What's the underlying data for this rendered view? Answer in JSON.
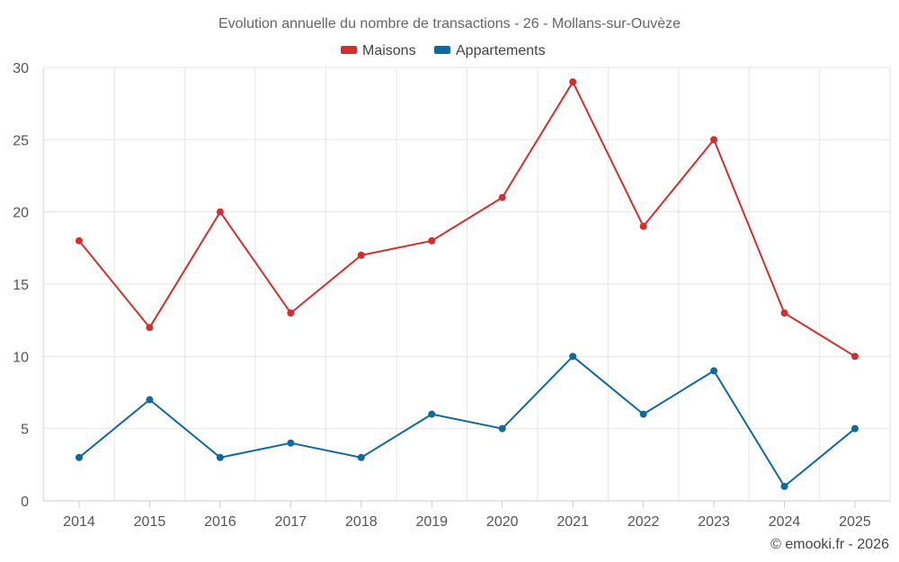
{
  "chart_data": {
    "type": "line",
    "title": "Evolution annuelle du nombre de transactions - 26 - Mollans-sur-Ouvèze",
    "categories": [
      "2014",
      "2015",
      "2016",
      "2017",
      "2018",
      "2019",
      "2020",
      "2021",
      "2022",
      "2023",
      "2024",
      "2025"
    ],
    "series": [
      {
        "name": "Maisons",
        "color": "#d32f2f",
        "values": [
          18,
          12,
          20,
          13,
          17,
          18,
          21,
          29,
          19,
          25,
          13,
          10
        ]
      },
      {
        "name": "Appartements",
        "color": "#0d6a9e",
        "values": [
          3,
          7,
          3,
          4,
          3,
          6,
          5,
          10,
          6,
          9,
          1,
          5
        ]
      }
    ],
    "ylim": [
      0,
      30
    ],
    "yticks": [
      "0",
      "5",
      "10",
      "15",
      "20",
      "25",
      "30"
    ],
    "xlabel": "",
    "ylabel": "",
    "grid": true,
    "legend_position": "top-center"
  },
  "credit": "© emooki.fr - 2026"
}
